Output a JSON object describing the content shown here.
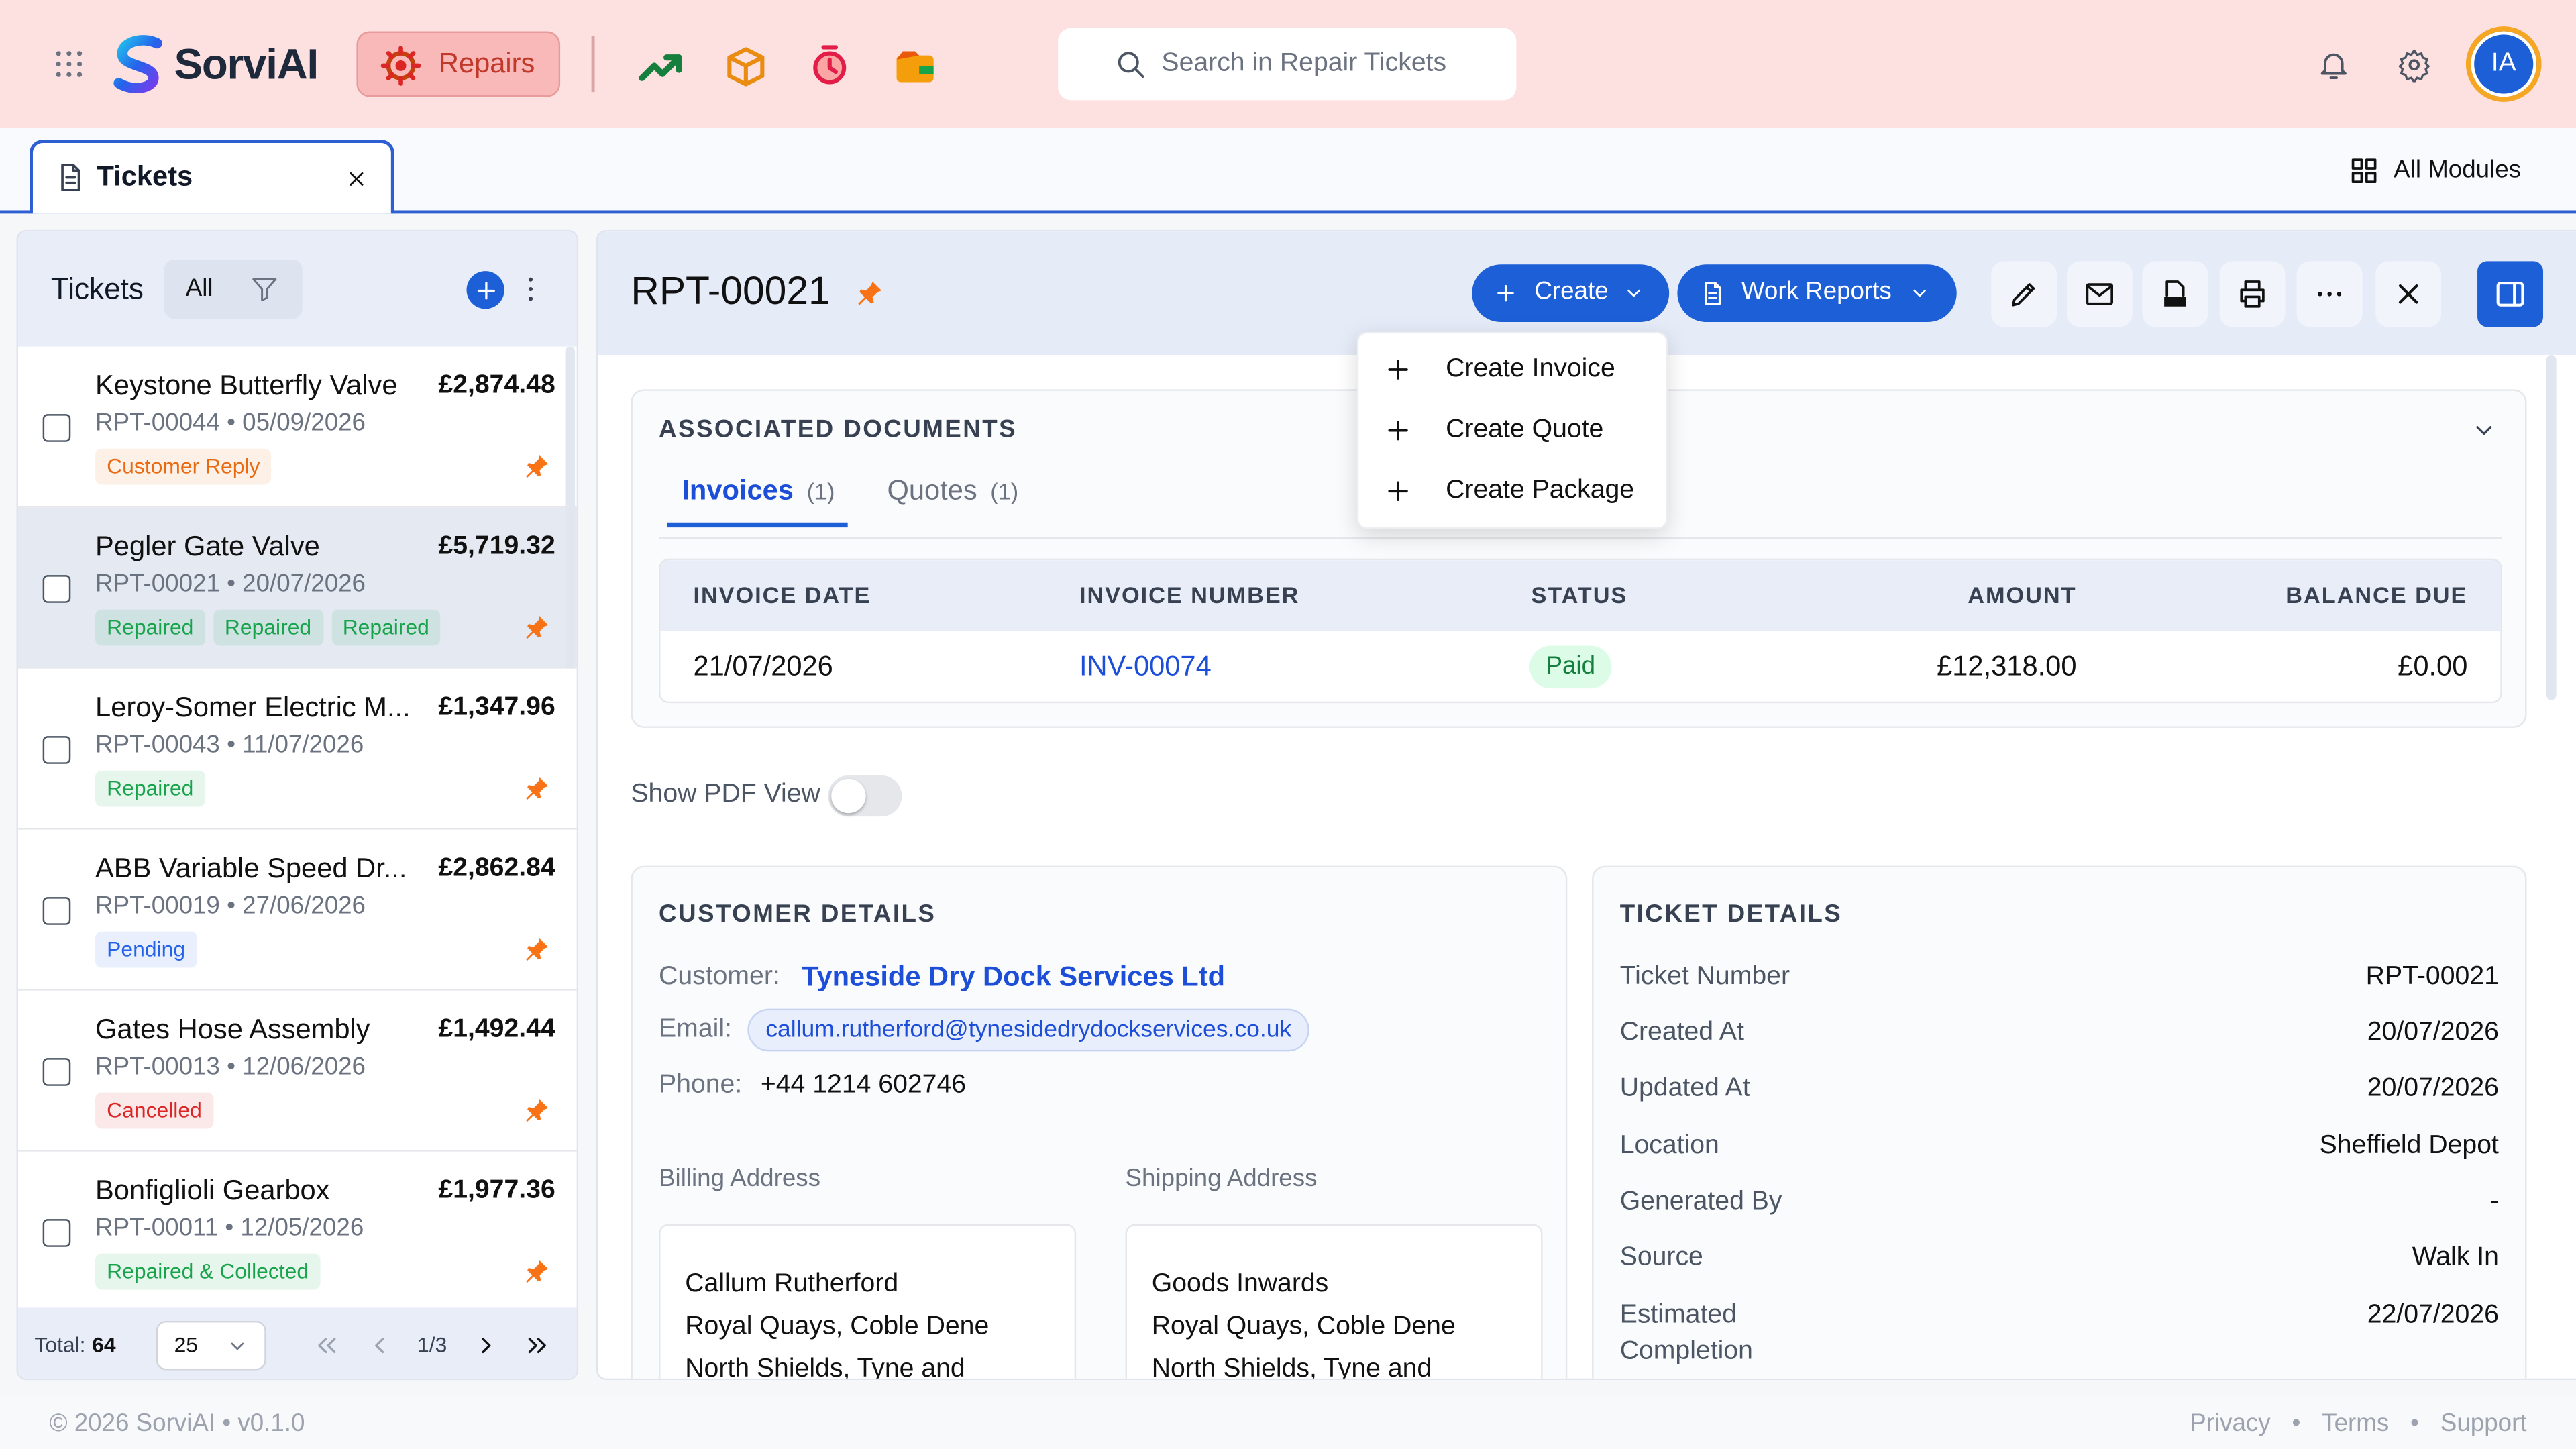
{
  "app": {
    "brand": "SorviAI",
    "module": "Repairs",
    "search_placeholder": "Search in Repair Tickets",
    "avatar": "IA"
  },
  "tabs": {
    "active": "Tickets",
    "all_modules": "All Modules"
  },
  "list": {
    "title": "Tickets",
    "filter": "All",
    "selected_index": 1,
    "items": [
      {
        "name": "Keystone Butterfly Valve",
        "amount": "£2,874.48",
        "ref": "RPT-00044 • 05/09/2026",
        "tags": [
          {
            "label": "Customer Reply",
            "color": "#ea6a12"
          }
        ]
      },
      {
        "name": "Pegler Gate Valve",
        "amount": "£5,719.32",
        "ref": "RPT-00021 • 20/07/2026",
        "tags": [
          {
            "label": "Repaired",
            "color": "#16a34a"
          },
          {
            "label": "Repaired",
            "color": "#16a34a"
          },
          {
            "label": "Repaired",
            "color": "#16a34a"
          }
        ]
      },
      {
        "name": "Leroy-Somer Electric M...",
        "amount": "£1,347.96",
        "ref": "RPT-00043 • 11/07/2026",
        "tags": [
          {
            "label": "Repaired",
            "color": "#16a34a"
          }
        ]
      },
      {
        "name": "ABB Variable Speed Dr...",
        "amount": "£2,862.84",
        "ref": "RPT-00019 • 27/06/2026",
        "tags": [
          {
            "label": "Pending",
            "color": "#2563eb"
          }
        ]
      },
      {
        "name": "Gates Hose Assembly",
        "amount": "£1,492.44",
        "ref": "RPT-00013 • 12/06/2026",
        "tags": [
          {
            "label": "Cancelled",
            "color": "#dc2626"
          }
        ]
      },
      {
        "name": "Bonfiglioli Gearbox",
        "amount": "£1,977.36",
        "ref": "RPT-00011 • 12/05/2026",
        "tags": [
          {
            "label": "Repaired & Collected",
            "color": "#16a34a"
          }
        ]
      }
    ],
    "total_label": "Total:",
    "total": 64,
    "page_size": 25,
    "page": "1/3"
  },
  "detail": {
    "title": "RPT-00021",
    "create": "Create",
    "work_reports": "Work Reports",
    "create_menu": [
      "Create Invoice",
      "Create Quote",
      "Create Package"
    ],
    "associated": {
      "heading": "ASSOCIATED DOCUMENTS",
      "tabs": [
        {
          "label": "Invoices",
          "count": "(1)"
        },
        {
          "label": "Quotes",
          "count": "(1)"
        }
      ],
      "columns": [
        "INVOICE DATE",
        "INVOICE NUMBER",
        "STATUS",
        "AMOUNT",
        "BALANCE DUE"
      ],
      "rows": [
        [
          "21/07/2026",
          "INV-00074",
          "Paid",
          "£12,318.00",
          "£0.00"
        ]
      ]
    },
    "show_pdf": "Show PDF View",
    "customer": {
      "heading": "CUSTOMER DETAILS",
      "customer_label": "Customer:",
      "customer": "Tyneside Dry Dock Services Ltd",
      "email_label": "Email:",
      "email": "callum.rutherford@tynesidedrydockservices.co.uk",
      "phone_label": "Phone:",
      "phone": "+44 1214 602746",
      "billing_label": "Billing Address",
      "billing": [
        "Callum Rutherford",
        "Royal Quays, Coble Dene",
        "North Shields, Tyne and"
      ],
      "shipping_label": "Shipping Address",
      "shipping": [
        "Goods Inwards",
        "Royal Quays, Coble Dene",
        "North Shields, Tyne and"
      ]
    },
    "ticket": {
      "heading": "TICKET DETAILS",
      "rows": [
        [
          "Ticket Number",
          "RPT-00021"
        ],
        [
          "Created At",
          "20/07/2026"
        ],
        [
          "Updated At",
          "20/07/2026"
        ],
        [
          "Location",
          "Sheffield Depot"
        ],
        [
          "Generated By",
          "-"
        ],
        [
          "Source",
          "Walk In"
        ],
        [
          "Estimated Completion",
          "22/07/2026"
        ]
      ]
    }
  },
  "footer": {
    "copyright": "© 2026 SorviAI • v0.1.0",
    "links": [
      "Privacy",
      "Terms",
      "Support"
    ],
    "separator": "•"
  }
}
